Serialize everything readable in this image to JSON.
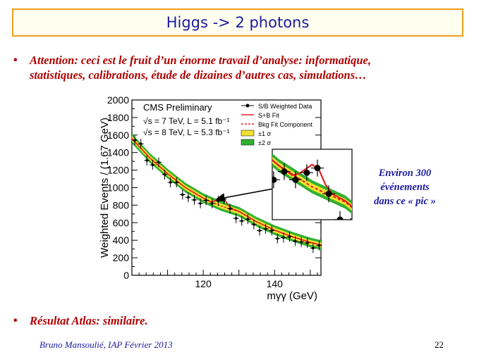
{
  "slide": {
    "title": "Higgs -> 2 photons",
    "bullets": [
      {
        "line1": "Attention: ceci est le fruit d’un énorme travail d’analyse:  informatique,",
        "line2": "statistiques, calibrations, étude de dizaines d’autres cas, simulations…"
      },
      {
        "line1": "Résultat Atlas: similaire."
      }
    ],
    "bullet_symbol": "•",
    "side_note": [
      "Environ 300",
      "événements",
      "dans ce « pic »"
    ],
    "footer": "Bruno Mansoulié,  IAP Février 2013",
    "page_number": "22"
  },
  "colors": {
    "title_border": "#f0a020",
    "title_text": "#1a1aa0",
    "bullet_text": "#b00000",
    "fit_red": "#e02020",
    "band1": "#f0e030",
    "band2": "#30b030"
  },
  "chart_data": {
    "type": "scatter",
    "title": "",
    "xlabel": "mγγ (GeV)",
    "ylabel": "Weighted Events / (1.67 GeV)",
    "xlim": [
      100,
      153
    ],
    "ylim": [
      0,
      2000
    ],
    "x_ticks": [
      "120",
      "140"
    ],
    "x_tick_values": [
      120,
      140
    ],
    "y_ticks": [
      "0",
      "200",
      "400",
      "600",
      "800",
      "1000",
      "1200",
      "1400",
      "1600",
      "1800",
      "2000"
    ],
    "y_tick_values": [
      0,
      200,
      400,
      600,
      800,
      1000,
      1200,
      1400,
      1600,
      1800,
      2000
    ],
    "annotations": [
      "CMS Preliminary",
      "√s = 7 TeV, L = 5.1 fb⁻¹",
      "√s = 8 TeV, L = 5.3 fb⁻¹"
    ],
    "legend": {
      "placement": "top-right",
      "entries": [
        "S/B Weighted Data",
        "S+B Fit",
        "Bkg Fit Component",
        "±1 σ",
        "±2 σ"
      ]
    },
    "series": [
      {
        "name": "S/B Weighted Data",
        "x": [
          100.8,
          102.5,
          104.2,
          105.8,
          107.5,
          109.2,
          110.8,
          112.5,
          114.2,
          115.8,
          117.5,
          119.2,
          120.8,
          122.5,
          124.2,
          125.8,
          127.5,
          129.2,
          130.8,
          132.5,
          134.2,
          135.8,
          137.5,
          139.2,
          140.8,
          142.5,
          144.2,
          145.8,
          147.5,
          149.2,
          150.8,
          152.5
        ],
        "y": [
          1540,
          1500,
          1310,
          1260,
          1290,
          1150,
          1060,
          1060,
          920,
          890,
          860,
          820,
          855,
          820,
          850,
          870,
          760,
          650,
          620,
          640,
          580,
          510,
          530,
          510,
          420,
          430,
          440,
          390,
          380,
          370,
          310,
          340
        ]
      },
      {
        "name": "S+B Fit",
        "x": [
          100,
          105,
          110,
          115,
          120,
          122,
          123,
          124,
          125,
          126,
          127,
          128,
          130,
          135,
          140,
          145,
          150,
          153
        ],
        "y": [
          1560,
          1340,
          1160,
          1000,
          880,
          840,
          845,
          865,
          885,
          865,
          800,
          760,
          730,
          610,
          515,
          440,
          375,
          345
        ]
      },
      {
        "name": "Bkg Fit Component",
        "x": [
          100,
          105,
          110,
          115,
          120,
          125,
          130,
          135,
          140,
          145,
          150,
          153
        ],
        "y": [
          1560,
          1340,
          1160,
          1000,
          880,
          790,
          725,
          610,
          515,
          440,
          375,
          345
        ]
      }
    ]
  }
}
